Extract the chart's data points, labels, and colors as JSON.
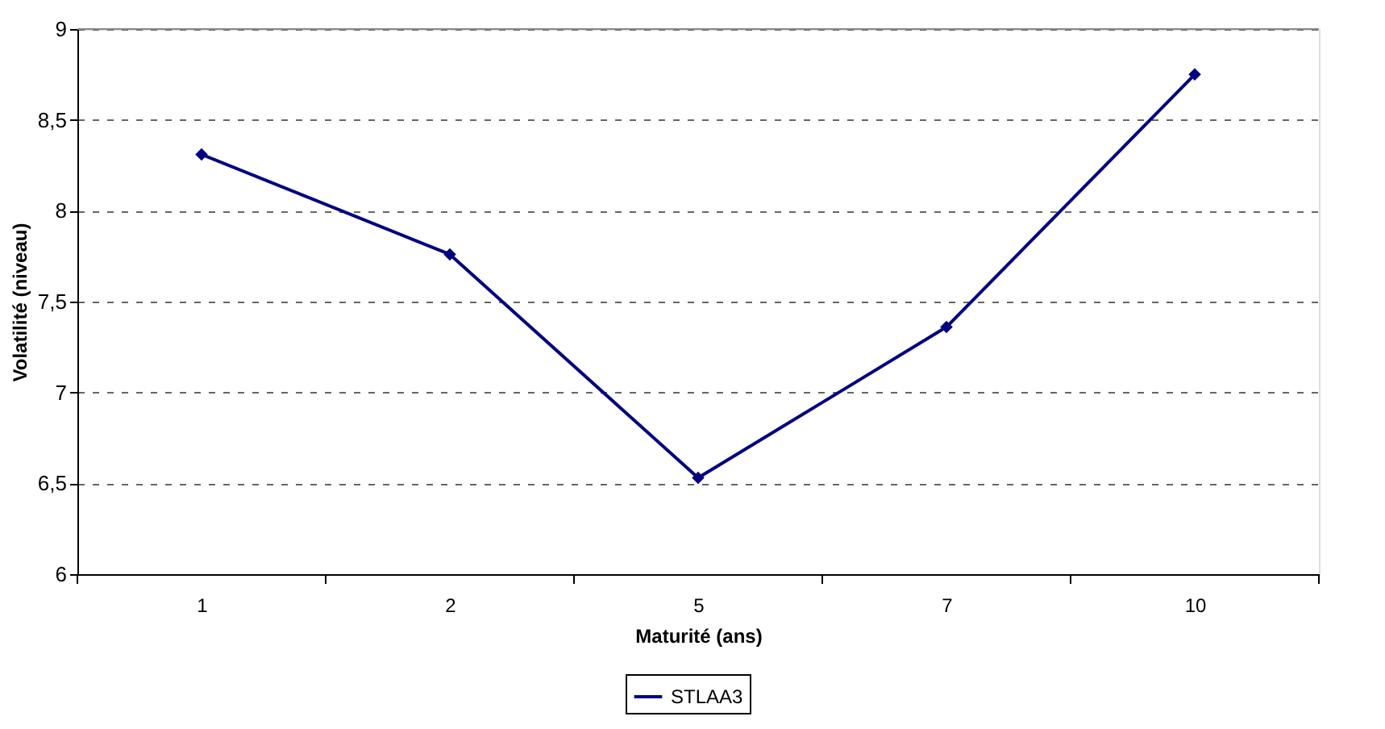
{
  "chart_data": {
    "type": "line",
    "xlabel": "Maturité (ans)",
    "ylabel": "Volatilité (niveau)",
    "categories": [
      "1",
      "2",
      "5",
      "7",
      "10"
    ],
    "series": [
      {
        "name": "STLAA3",
        "color": "#000080",
        "values": [
          8.31,
          7.76,
          6.53,
          7.36,
          8.75
        ]
      }
    ],
    "ylim": [
      6,
      9
    ],
    "yticks": [
      6,
      {
        "value": 6.5,
        "label": "6,5"
      },
      7,
      {
        "value": 7.5,
        "label": "7,5"
      },
      8,
      {
        "value": 8.5,
        "label": "8,5"
      },
      9
    ],
    "grid": "y",
    "legend": "bottom",
    "marker": "diamond",
    "line_style": "solid"
  }
}
